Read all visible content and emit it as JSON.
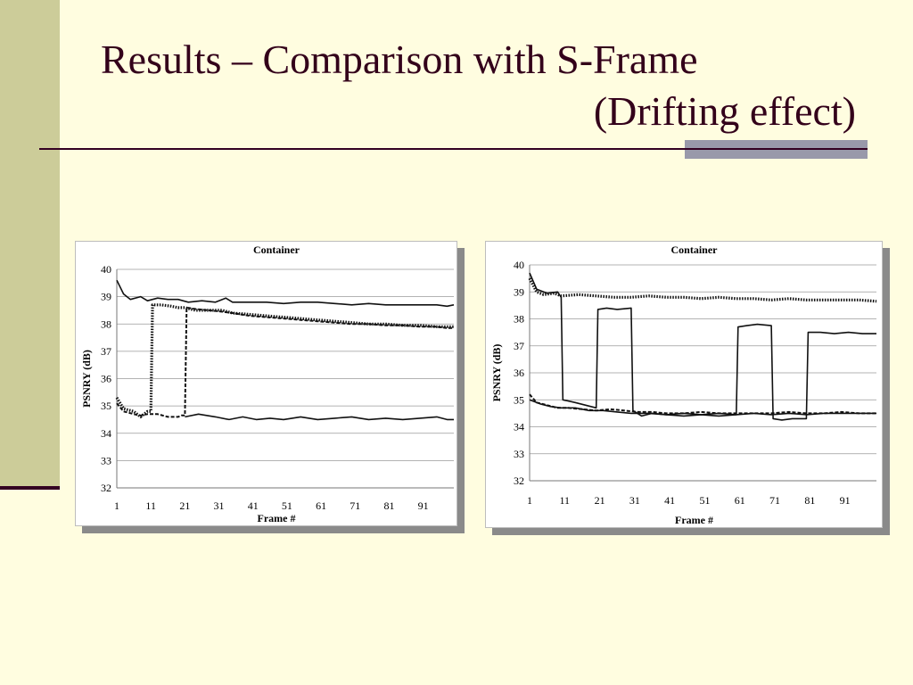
{
  "slide": {
    "title_line1": "Results – Comparison with S-Frame",
    "title_line2": "(Drifting effect)"
  },
  "colors": {
    "background": "#FFFDE0",
    "accent_band": "#CCCC99",
    "title_text": "#33001A",
    "rule": "#330022"
  },
  "chart_data": [
    {
      "type": "line",
      "title": "Container",
      "xlabel": "Frame #",
      "ylabel": "PSNRY (dB)",
      "xlim": [
        1,
        100
      ],
      "ylim": [
        32,
        40
      ],
      "xticks": [
        "1",
        "11",
        "21",
        "31",
        "41",
        "51",
        "61",
        "71",
        "81",
        "91"
      ],
      "yticks": [
        "32",
        "33",
        "34",
        "35",
        "36",
        "37",
        "38",
        "39",
        "40"
      ],
      "grid": true,
      "series": [
        {
          "style": "solid",
          "points": [
            [
              1,
              39.6
            ],
            [
              3,
              39.1
            ],
            [
              5,
              38.9
            ],
            [
              8,
              39.0
            ],
            [
              10,
              38.85
            ],
            [
              13,
              38.95
            ],
            [
              16,
              38.9
            ],
            [
              19,
              38.9
            ],
            [
              22,
              38.8
            ],
            [
              26,
              38.85
            ],
            [
              30,
              38.8
            ],
            [
              33,
              38.95
            ],
            [
              35,
              38.8
            ],
            [
              40,
              38.8
            ],
            [
              45,
              38.8
            ],
            [
              50,
              38.75
            ],
            [
              55,
              38.8
            ],
            [
              60,
              38.8
            ],
            [
              65,
              38.75
            ],
            [
              70,
              38.7
            ],
            [
              75,
              38.75
            ],
            [
              80,
              38.7
            ],
            [
              85,
              38.7
            ],
            [
              90,
              38.7
            ],
            [
              95,
              38.7
            ],
            [
              98,
              38.65
            ],
            [
              100,
              38.7
            ]
          ]
        },
        {
          "style": "dotted",
          "points": [
            [
              1,
              35.3
            ],
            [
              3,
              34.9
            ],
            [
              6,
              34.8
            ],
            [
              8,
              34.6
            ],
            [
              10,
              34.8
            ],
            [
              11,
              34.8
            ],
            [
              11.5,
              38.7
            ],
            [
              14,
              38.7
            ],
            [
              17,
              38.65
            ],
            [
              19,
              38.6
            ],
            [
              20,
              38.6
            ],
            [
              21,
              38.6
            ],
            [
              24,
              38.5
            ],
            [
              28,
              38.5
            ],
            [
              32,
              38.5
            ],
            [
              35,
              38.4
            ],
            [
              40,
              38.35
            ],
            [
              45,
              38.3
            ],
            [
              50,
              38.25
            ],
            [
              55,
              38.2
            ],
            [
              60,
              38.15
            ],
            [
              65,
              38.1
            ],
            [
              70,
              38.05
            ],
            [
              75,
              38.0
            ],
            [
              80,
              38.0
            ],
            [
              85,
              37.95
            ],
            [
              90,
              37.95
            ],
            [
              95,
              37.9
            ],
            [
              98,
              37.9
            ],
            [
              100,
              37.9
            ]
          ]
        },
        {
          "style": "dashed",
          "points": [
            [
              1,
              35.1
            ],
            [
              3,
              34.8
            ],
            [
              6,
              34.7
            ],
            [
              8,
              34.65
            ],
            [
              10,
              34.7
            ],
            [
              13,
              34.7
            ],
            [
              16,
              34.6
            ],
            [
              19,
              34.6
            ],
            [
              20,
              34.65
            ],
            [
              21,
              34.65
            ],
            [
              21.5,
              38.6
            ],
            [
              24,
              38.55
            ],
            [
              28,
              38.5
            ],
            [
              32,
              38.45
            ],
            [
              35,
              38.4
            ],
            [
              40,
              38.3
            ],
            [
              45,
              38.25
            ],
            [
              50,
              38.2
            ],
            [
              55,
              38.15
            ],
            [
              60,
              38.1
            ],
            [
              65,
              38.05
            ],
            [
              70,
              38.0
            ],
            [
              75,
              38.0
            ],
            [
              80,
              37.95
            ],
            [
              85,
              37.95
            ],
            [
              90,
              37.9
            ],
            [
              95,
              37.9
            ],
            [
              98,
              37.85
            ],
            [
              100,
              37.85
            ]
          ]
        },
        {
          "style": "solid",
          "points": [
            [
              21,
              34.6
            ],
            [
              25,
              34.7
            ],
            [
              30,
              34.6
            ],
            [
              34,
              34.5
            ],
            [
              38,
              34.6
            ],
            [
              42,
              34.5
            ],
            [
              46,
              34.55
            ],
            [
              50,
              34.5
            ],
            [
              55,
              34.6
            ],
            [
              60,
              34.5
            ],
            [
              65,
              34.55
            ],
            [
              70,
              34.6
            ],
            [
              75,
              34.5
            ],
            [
              80,
              34.55
            ],
            [
              85,
              34.5
            ],
            [
              90,
              34.55
            ],
            [
              95,
              34.6
            ],
            [
              98,
              34.5
            ],
            [
              100,
              34.5
            ]
          ]
        }
      ]
    },
    {
      "type": "line",
      "title": "Container",
      "xlabel": "Frame #",
      "ylabel": "PSNRY (dB)",
      "xlim": [
        1,
        100
      ],
      "ylim": [
        32,
        40
      ],
      "xticks": [
        "1",
        "11",
        "21",
        "31",
        "41",
        "51",
        "61",
        "71",
        "81",
        "91"
      ],
      "yticks": [
        "32",
        "33",
        "34",
        "35",
        "36",
        "37",
        "38",
        "39",
        "40"
      ],
      "grid": true,
      "series": [
        {
          "style": "dotted",
          "points": [
            [
              1,
              39.5
            ],
            [
              3,
              39.0
            ],
            [
              5,
              38.9
            ],
            [
              8,
              38.95
            ],
            [
              10,
              38.85
            ],
            [
              15,
              38.9
            ],
            [
              20,
              38.85
            ],
            [
              25,
              38.8
            ],
            [
              30,
              38.8
            ],
            [
              35,
              38.85
            ],
            [
              40,
              38.8
            ],
            [
              45,
              38.8
            ],
            [
              50,
              38.75
            ],
            [
              55,
              38.8
            ],
            [
              60,
              38.75
            ],
            [
              65,
              38.75
            ],
            [
              70,
              38.7
            ],
            [
              75,
              38.75
            ],
            [
              80,
              38.7
            ],
            [
              85,
              38.7
            ],
            [
              90,
              38.7
            ],
            [
              95,
              38.7
            ],
            [
              100,
              38.65
            ]
          ]
        },
        {
          "style": "solid",
          "points": [
            [
              1,
              39.7
            ],
            [
              3,
              39.1
            ],
            [
              6,
              38.95
            ],
            [
              9,
              39.0
            ],
            [
              10,
              38.8
            ],
            [
              10.5,
              35.0
            ],
            [
              14,
              34.9
            ],
            [
              17,
              34.8
            ],
            [
              20,
              34.7
            ],
            [
              20.5,
              38.35
            ],
            [
              23,
              38.4
            ],
            [
              26,
              38.35
            ],
            [
              30,
              38.4
            ],
            [
              30.5,
              34.6
            ],
            [
              33,
              34.4
            ],
            [
              36,
              34.5
            ],
            [
              40,
              34.45
            ],
            [
              45,
              34.4
            ],
            [
              50,
              34.45
            ],
            [
              55,
              34.4
            ],
            [
              60,
              34.45
            ],
            [
              60.5,
              37.7
            ],
            [
              63,
              37.75
            ],
            [
              66,
              37.8
            ],
            [
              70,
              37.75
            ],
            [
              70.5,
              34.3
            ],
            [
              73,
              34.25
            ],
            [
              76,
              34.3
            ],
            [
              79,
              34.3
            ],
            [
              80,
              34.3
            ],
            [
              80.5,
              37.5
            ],
            [
              84,
              37.5
            ],
            [
              88,
              37.45
            ],
            [
              92,
              37.5
            ],
            [
              96,
              37.45
            ],
            [
              100,
              37.45
            ]
          ]
        },
        {
          "style": "dashed",
          "points": [
            [
              1,
              35.2
            ],
            [
              3,
              34.9
            ],
            [
              6,
              34.8
            ],
            [
              9,
              34.7
            ],
            [
              12,
              34.7
            ],
            [
              16,
              34.65
            ],
            [
              20,
              34.6
            ],
            [
              24,
              34.65
            ],
            [
              28,
              34.6
            ],
            [
              32,
              34.55
            ],
            [
              36,
              34.55
            ],
            [
              40,
              34.5
            ],
            [
              45,
              34.5
            ],
            [
              50,
              34.55
            ],
            [
              55,
              34.5
            ],
            [
              60,
              34.5
            ],
            [
              65,
              34.5
            ],
            [
              70,
              34.5
            ],
            [
              75,
              34.55
            ],
            [
              80,
              34.5
            ],
            [
              85,
              34.5
            ],
            [
              90,
              34.55
            ],
            [
              95,
              34.5
            ],
            [
              100,
              34.5
            ]
          ]
        },
        {
          "style": "solid",
          "points": [
            [
              1,
              35.0
            ],
            [
              4,
              34.85
            ],
            [
              7,
              34.75
            ],
            [
              10,
              34.7
            ],
            [
              14,
              34.7
            ],
            [
              18,
              34.6
            ],
            [
              22,
              34.6
            ],
            [
              26,
              34.55
            ],
            [
              30,
              34.5
            ],
            [
              35,
              34.5
            ],
            [
              40,
              34.45
            ],
            [
              45,
              34.5
            ],
            [
              50,
              34.45
            ],
            [
              55,
              34.5
            ],
            [
              60,
              34.45
            ],
            [
              65,
              34.5
            ],
            [
              70,
              34.45
            ],
            [
              75,
              34.5
            ],
            [
              80,
              34.45
            ],
            [
              85,
              34.5
            ],
            [
              90,
              34.5
            ],
            [
              95,
              34.5
            ],
            [
              100,
              34.5
            ]
          ]
        }
      ]
    }
  ]
}
